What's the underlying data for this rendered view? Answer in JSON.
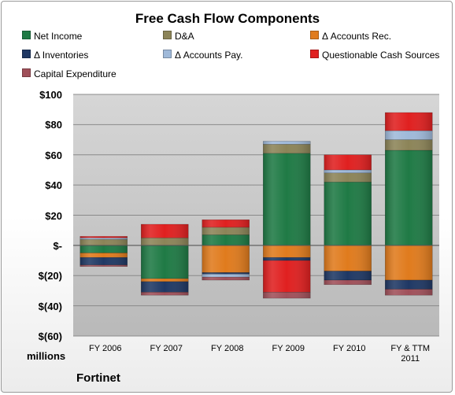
{
  "chart_data": {
    "type": "bar",
    "stacked": true,
    "title": "Free Cash Flow Components",
    "company": "Fortinet",
    "ylabel_units": "millions",
    "ylim": [
      -60,
      100
    ],
    "yticks": [
      -60,
      -40,
      -20,
      0,
      20,
      40,
      60,
      80,
      100
    ],
    "ytick_labels": [
      "$(60)",
      "$(40)",
      "$(20)",
      "$-",
      "$20",
      "$40",
      "$60",
      "$80",
      "$100"
    ],
    "grid": true,
    "legend_position": "top",
    "categories": [
      "FY 2006",
      "FY 2007",
      "FY 2008",
      "FY 2009",
      "FY 2010",
      "FY & TTM 2011"
    ],
    "series": [
      {
        "name": "Net Income",
        "color": "#1f7a45",
        "values": [
          -5,
          -22,
          7,
          61,
          42,
          63
        ]
      },
      {
        "name": "D&A",
        "color": "#8c8458",
        "values": [
          4,
          5,
          5,
          6,
          6,
          7
        ]
      },
      {
        "name": "Δ Accounts Rec.",
        "color": "#e07b1d",
        "values": [
          -3,
          -2,
          -18,
          -8,
          -17,
          -23
        ]
      },
      {
        "name": "Δ Inventories",
        "color": "#1f3864",
        "values": [
          -5,
          -7,
          -1,
          -2,
          -6,
          -6
        ]
      },
      {
        "name": "Δ Accounts Pay.",
        "color": "#9fb9d9",
        "values": [
          1,
          0,
          -2,
          2,
          2,
          6
        ]
      },
      {
        "name": "Questionable Cash Sources",
        "color": "#e02020",
        "values": [
          1,
          9,
          5,
          -21,
          10,
          12
        ]
      },
      {
        "name": "Capital Expenditure",
        "color": "#a0505a",
        "values": [
          -1,
          -2,
          -2,
          -4,
          -3,
          -4
        ]
      }
    ]
  }
}
